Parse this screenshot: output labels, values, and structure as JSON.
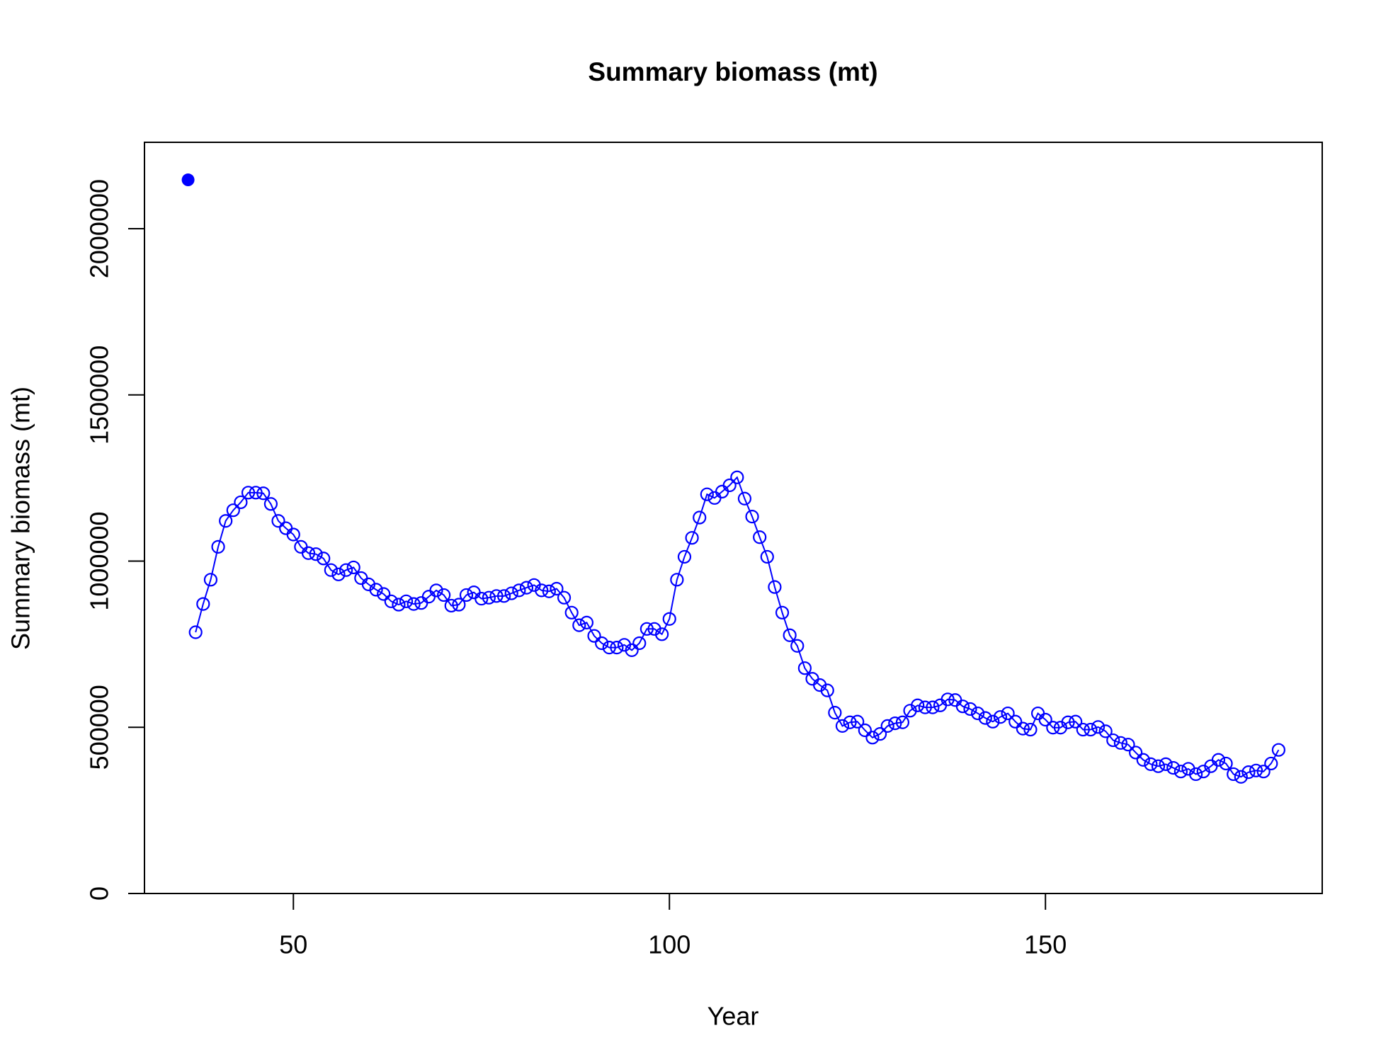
{
  "chart_data": {
    "type": "line",
    "title": "Summary biomass (mt)",
    "xlabel": "Year",
    "ylabel": "Summary biomass (mt)",
    "xlim": [
      30.2,
      186.8
    ],
    "ylim": [
      0,
      2260000
    ],
    "xticks": [
      50,
      100,
      150
    ],
    "yticks": [
      0,
      500000,
      1000000,
      1500000,
      2000000
    ],
    "grid": false,
    "series": [
      {
        "color": "#0000ff",
        "marker": "filled",
        "line": false,
        "x": [
          36
        ],
        "values": [
          2147000
        ]
      },
      {
        "color": "#0000ff",
        "marker": "open",
        "line": true,
        "x": [
          37,
          38,
          39,
          40,
          41,
          42,
          43,
          44,
          45,
          46,
          47,
          48,
          49,
          50,
          51,
          52,
          53,
          54,
          55,
          56,
          57,
          58,
          59,
          60,
          61,
          62,
          63,
          64,
          65,
          66,
          67,
          68,
          69,
          70,
          71,
          72,
          73,
          74,
          75,
          76,
          77,
          78,
          79,
          80,
          81,
          82,
          83,
          84,
          85,
          86,
          87,
          88,
          89,
          90,
          91,
          92,
          93,
          94,
          95,
          96,
          97,
          98,
          99,
          100,
          101,
          102,
          103,
          104,
          105,
          106,
          107,
          108,
          109,
          110,
          111,
          112,
          113,
          114,
          115,
          116,
          117,
          118,
          119,
          120,
          121,
          122,
          123,
          124,
          125,
          126,
          127,
          128,
          129,
          130,
          131,
          132,
          133,
          134,
          135,
          136,
          137,
          138,
          139,
          140,
          141,
          142,
          143,
          144,
          145,
          146,
          147,
          148,
          149,
          150,
          151,
          152,
          153,
          154,
          155,
          156,
          157,
          158,
          159,
          160,
          161,
          162,
          163,
          164,
          165,
          166,
          167,
          168,
          169,
          170,
          171,
          172,
          173,
          174,
          175,
          176,
          177,
          178,
          179,
          180,
          181
        ],
        "values": [
          786000,
          871000,
          944000,
          1043000,
          1121000,
          1153000,
          1177000,
          1206000,
          1206000,
          1204000,
          1172000,
          1121000,
          1099000,
          1080000,
          1043000,
          1024000,
          1021000,
          1008000,
          973000,
          960000,
          973000,
          981000,
          949000,
          930000,
          914000,
          901000,
          879000,
          869000,
          879000,
          871000,
          874000,
          893000,
          912000,
          898000,
          866000,
          869000,
          898000,
          906000,
          887000,
          890000,
          895000,
          895000,
          903000,
          912000,
          920000,
          928000,
          912000,
          909000,
          917000,
          890000,
          845000,
          807000,
          815000,
          775000,
          753000,
          740000,
          740000,
          748000,
          732000,
          753000,
          796000,
          796000,
          780000,
          826000,
          944000,
          1013000,
          1070000,
          1131000,
          1201000,
          1190000,
          1209000,
          1228000,
          1252000,
          1188000,
          1134000,
          1072000,
          1013000,
          922000,
          845000,
          777000,
          745000,
          678000,
          646000,
          627000,
          611000,
          544000,
          504000,
          515000,
          517000,
          491000,
          469000,
          480000,
          504000,
          512000,
          515000,
          550000,
          566000,
          560000,
          560000,
          566000,
          584000,
          582000,
          563000,
          555000,
          542000,
          528000,
          517000,
          531000,
          542000,
          517000,
          496000,
          493000,
          542000,
          523000,
          499000,
          499000,
          515000,
          517000,
          493000,
          493000,
          501000,
          488000,
          461000,
          453000,
          448000,
          424000,
          402000,
          389000,
          383000,
          389000,
          378000,
          367000,
          375000,
          359000,
          367000,
          383000,
          402000,
          391000,
          359000,
          351000,
          365000,
          370000,
          367000,
          391000,
          432000
        ]
      }
    ]
  }
}
